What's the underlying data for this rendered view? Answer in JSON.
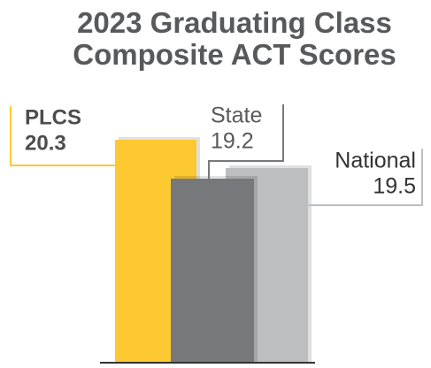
{
  "chart_data": {
    "type": "bar",
    "title": "2023 Graduating Class Composite ACT Scores",
    "categories": [
      "PLCS",
      "State",
      "National"
    ],
    "values": [
      20.3,
      19.2,
      19.5
    ],
    "colors": [
      "#fcc933",
      "#77787b",
      "#bcbec0"
    ],
    "ylim": [
      14,
      21
    ]
  }
}
